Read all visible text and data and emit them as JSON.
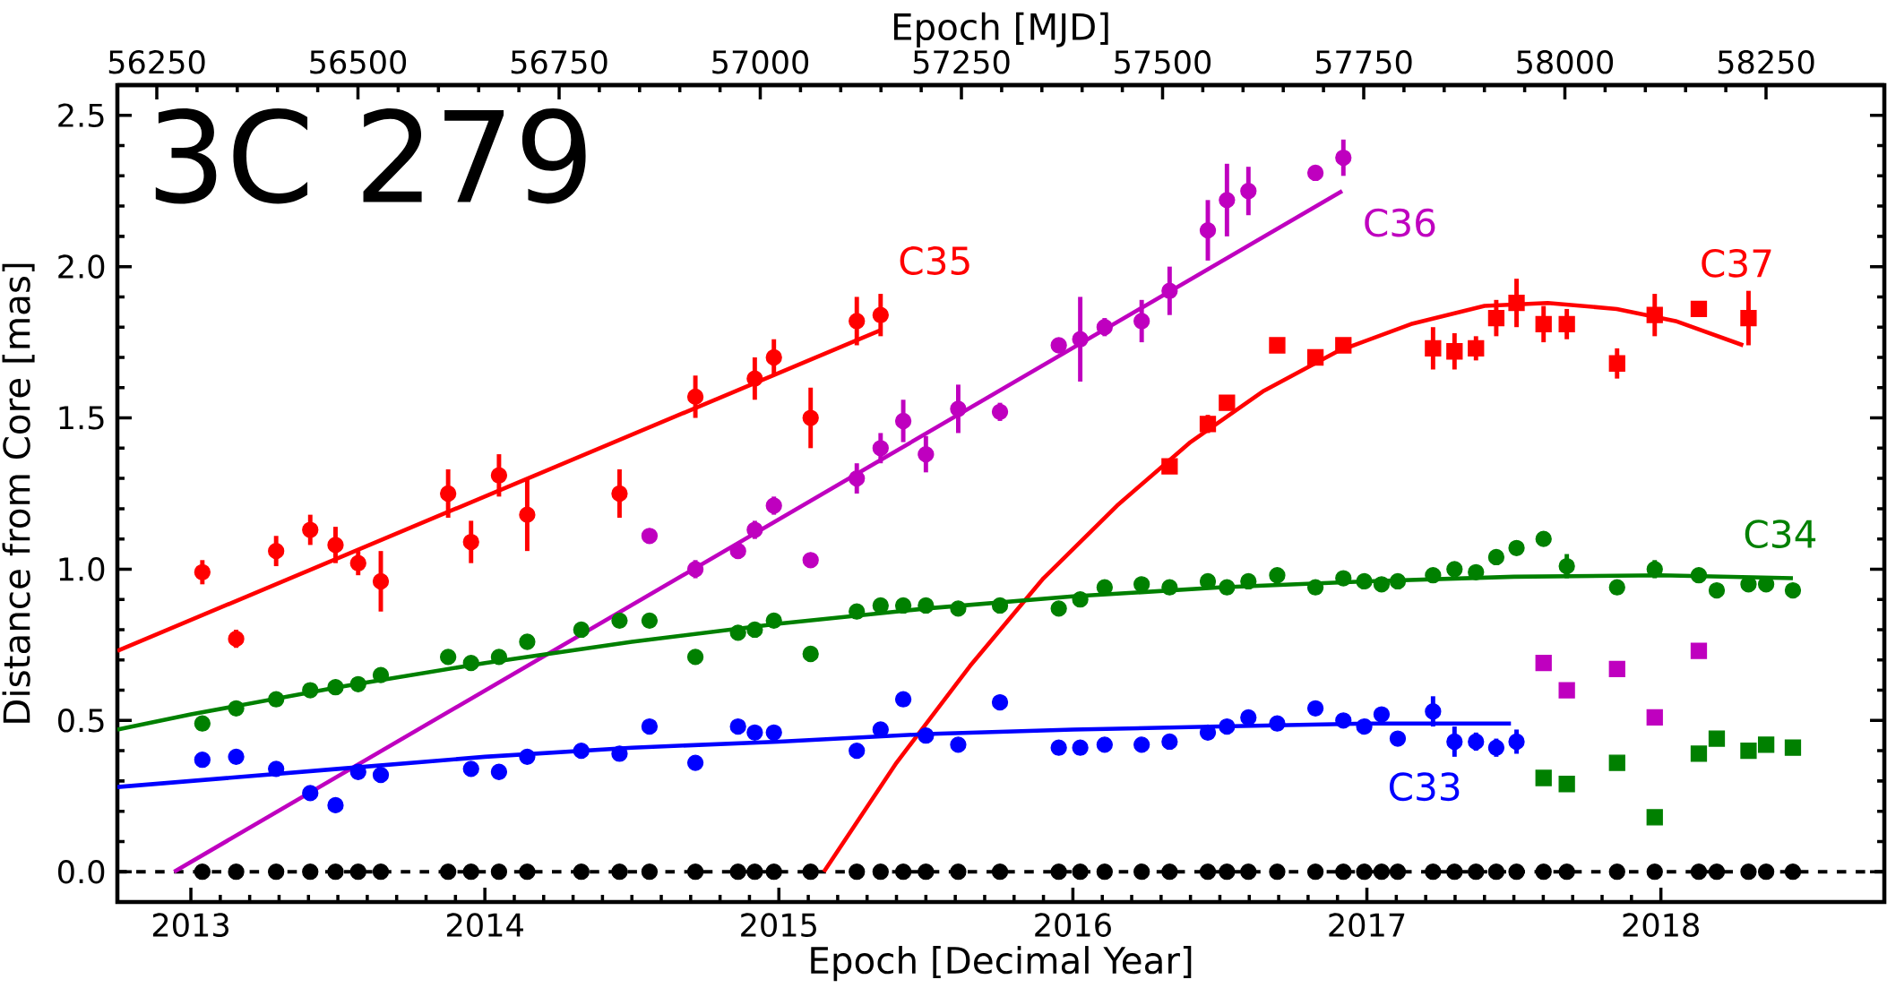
{
  "chart_data": {
    "type": "scatter",
    "xlabel": "Epoch [Decimal Year]",
    "x2label": "Epoch [MJD]",
    "ylabel": "Distance from Core [mas]",
    "xlim": [
      2012.75,
      2018.76
    ],
    "xticks": [
      2013,
      2014,
      2015,
      2016,
      2017,
      2018
    ],
    "x2lim": [
      56201,
      58397
    ],
    "x2ticks": [
      56250,
      56500,
      56750,
      57000,
      57250,
      57500,
      57750,
      58000,
      58250
    ],
    "ylim": [
      -0.1,
      2.6
    ],
    "yticks": [
      {
        "value": 0,
        "label": "0.0"
      },
      0.5,
      {
        "value": 1,
        "label": "1.0"
      },
      1.5,
      {
        "value": 2,
        "label": "2.0"
      },
      2.5
    ],
    "ref_lines": [
      {
        "axis": "y",
        "value": 0,
        "color": "#000000",
        "line_style": "dashed"
      }
    ],
    "annotations": [
      "3C 279"
    ],
    "series": [
      {
        "type": "line",
        "name": "C35",
        "color": "#ff0000",
        "marker": "none",
        "line_style": "solid",
        "x": [
          2012.75,
          2015.346
        ],
        "values": [
          0.73,
          1.79
        ]
      },
      {
        "type": "line",
        "name": "C36",
        "color": "#bf00bf",
        "marker": "none",
        "line_style": "solid",
        "x": [
          2012.943,
          2016.916
        ],
        "values": [
          0.0,
          2.25
        ]
      },
      {
        "type": "line",
        "name": "C37",
        "color": "#ff0000",
        "marker": "none",
        "line_style": "solid",
        "x": [
          2015.153,
          2015.4,
          2015.65,
          2015.9,
          2016.15,
          2016.4,
          2016.65,
          2016.9,
          2017.15,
          2017.4,
          2017.615,
          2017.85,
          2018.05,
          2018.28
        ],
        "values": [
          0.0,
          0.36,
          0.68,
          0.97,
          1.21,
          1.42,
          1.59,
          1.72,
          1.81,
          1.87,
          1.88,
          1.86,
          1.82,
          1.74
        ]
      },
      {
        "type": "line",
        "name": "C34",
        "color": "#008000",
        "marker": "none",
        "line_style": "solid",
        "x": [
          2012.75,
          2013,
          2013.5,
          2014,
          2014.5,
          2015,
          2015.5,
          2016,
          2016.5,
          2017,
          2017.5,
          2018,
          2018.449
        ],
        "values": [
          0.47,
          0.52,
          0.61,
          0.69,
          0.76,
          0.82,
          0.87,
          0.91,
          0.94,
          0.96,
          0.975,
          0.98,
          0.97
        ]
      },
      {
        "type": "line",
        "name": "C33",
        "color": "#0000ff",
        "marker": "none",
        "line_style": "solid",
        "x": [
          2012.75,
          2013,
          2013.5,
          2014,
          2014.5,
          2015,
          2015.5,
          2016,
          2016.5,
          2017,
          2017.49
        ],
        "values": [
          0.28,
          0.3,
          0.34,
          0.38,
          0.41,
          0.43,
          0.455,
          0.47,
          0.48,
          0.49,
          0.49
        ]
      },
      {
        "color": "#000000",
        "marker": "circle",
        "x": [
          2013.039,
          2013.154,
          2013.29,
          2013.406,
          2013.492,
          2013.569,
          2013.646,
          2013.875,
          2013.953,
          2014.048,
          2014.144,
          2014.328,
          2014.458,
          2014.56,
          2014.716,
          2014.861,
          2014.918,
          2014.983,
          2015.108,
          2015.265,
          2015.346,
          2015.423,
          2015.5,
          2015.61,
          2015.752,
          2015.952,
          2016.025,
          2016.108,
          2016.234,
          2016.329,
          2016.459,
          2016.524,
          2016.597,
          2016.695,
          2016.825,
          2016.92,
          2016.991,
          2017.05,
          2017.105,
          2017.225,
          2017.298,
          2017.371,
          2017.44,
          2017.509,
          2017.601,
          2017.68,
          2017.851,
          2017.979,
          2018.129,
          2018.19,
          2018.298,
          2018.358,
          2018.449
        ],
        "values": [
          0,
          0,
          0,
          0,
          0,
          0,
          0,
          0,
          0,
          0,
          0,
          0,
          0,
          0,
          0,
          0,
          0,
          0,
          0,
          0,
          0,
          0,
          0,
          0,
          0,
          0,
          0,
          0,
          0,
          0,
          0,
          0,
          0,
          0,
          0,
          0,
          0,
          0,
          0,
          0,
          0,
          0,
          0,
          0,
          0,
          0,
          0,
          0,
          0,
          0,
          0,
          0,
          0
        ]
      },
      {
        "color": "#008000",
        "marker": "circle",
        "x": [
          2013.039,
          2013.154,
          2013.29,
          2013.406,
          2013.492,
          2013.569,
          2013.646,
          2013.875,
          2013.953,
          2014.048,
          2014.144,
          2014.328,
          2014.458,
          2014.56,
          2014.716,
          2014.861,
          2014.918,
          2014.983,
          2015.108,
          2015.265,
          2015.346,
          2015.423,
          2015.5,
          2015.61,
          2015.752,
          2015.952,
          2016.025,
          2016.108,
          2016.234,
          2016.329,
          2016.459,
          2016.524,
          2016.597,
          2016.695,
          2016.825,
          2016.92,
          2016.991,
          2017.05,
          2017.105,
          2017.225,
          2017.298,
          2017.371,
          2017.44,
          2017.509,
          2017.601,
          2017.68,
          2017.851,
          2017.979,
          2018.129,
          2018.19,
          2018.298,
          2018.358,
          2018.449
        ],
        "values": [
          0.49,
          0.54,
          0.57,
          0.6,
          0.61,
          0.62,
          0.65,
          0.71,
          0.69,
          0.71,
          0.76,
          0.8,
          0.83,
          0.83,
          0.71,
          0.79,
          0.8,
          0.83,
          0.72,
          0.86,
          0.88,
          0.88,
          0.88,
          0.87,
          0.88,
          0.87,
          0.9,
          0.94,
          0.95,
          0.94,
          0.96,
          0.94,
          0.96,
          0.98,
          0.94,
          0.97,
          0.96,
          0.95,
          0.96,
          0.98,
          1.0,
          0.99,
          1.04,
          1.07,
          1.1,
          1.01,
          0.94,
          1.0,
          0.98,
          0.93,
          0.95,
          0.95,
          0.93
        ],
        "errors": [
          null,
          null,
          null,
          null,
          null,
          null,
          null,
          null,
          null,
          null,
          null,
          null,
          null,
          null,
          null,
          null,
          null,
          null,
          null,
          null,
          null,
          null,
          null,
          null,
          null,
          null,
          null,
          null,
          null,
          null,
          null,
          null,
          null,
          null,
          null,
          null,
          null,
          null,
          null,
          0.02,
          null,
          null,
          null,
          0.02,
          0.02,
          0.04,
          null,
          0.03,
          null,
          null,
          null,
          null,
          null
        ]
      },
      {
        "color": "#0000ff",
        "marker": "circle",
        "x": [
          2013.039,
          2013.154,
          2013.29,
          2013.406,
          2013.492,
          2013.569,
          2013.646,
          2013.953,
          2014.048,
          2014.144,
          2014.328,
          2014.458,
          2014.56,
          2014.716,
          2014.861,
          2014.918,
          2014.983,
          2015.265,
          2015.346,
          2015.423,
          2015.5,
          2015.61,
          2015.752,
          2015.952,
          2016.025,
          2016.108,
          2016.234,
          2016.329,
          2016.459,
          2016.524,
          2016.597,
          2016.695,
          2016.825,
          2016.92,
          2016.991,
          2017.05,
          2017.105,
          2017.225,
          2017.298,
          2017.371,
          2017.44,
          2017.509
        ],
        "values": [
          0.37,
          0.38,
          0.34,
          0.26,
          0.22,
          0.33,
          0.32,
          0.34,
          0.33,
          0.38,
          0.4,
          0.39,
          0.48,
          0.36,
          0.48,
          0.46,
          0.46,
          0.4,
          0.47,
          0.57,
          0.45,
          0.42,
          0.56,
          0.41,
          0.41,
          0.42,
          0.42,
          0.43,
          0.46,
          0.48,
          0.51,
          0.49,
          0.54,
          0.5,
          0.48,
          0.52,
          0.44,
          0.53,
          0.43,
          0.43,
          0.41,
          0.43
        ],
        "errors": [
          null,
          null,
          null,
          null,
          null,
          null,
          null,
          null,
          null,
          null,
          null,
          null,
          null,
          null,
          null,
          null,
          null,
          null,
          null,
          null,
          null,
          null,
          null,
          null,
          null,
          null,
          null,
          null,
          null,
          null,
          null,
          null,
          null,
          null,
          null,
          0.02,
          null,
          0.05,
          0.05,
          0.03,
          0.03,
          0.04
        ]
      },
      {
        "color": "#008000",
        "marker": "square",
        "x": [
          2017.601,
          2017.68,
          2017.851,
          2017.979,
          2018.129,
          2018.19,
          2018.298,
          2018.358,
          2018.449
        ],
        "values": [
          0.31,
          0.29,
          0.36,
          0.18,
          0.39,
          0.44,
          0.4,
          0.42,
          0.41
        ],
        "errors": [
          null,
          null,
          null,
          null,
          0.02,
          null,
          null,
          null,
          null
        ]
      },
      {
        "color": "#bf00bf",
        "marker": "square",
        "x": [
          2017.601,
          2017.68,
          2017.851,
          2017.979,
          2018.129
        ],
        "values": [
          0.69,
          0.6,
          0.67,
          0.51,
          0.73
        ]
      },
      {
        "color": "#ff0000",
        "marker": "circle",
        "x": [
          2013.039,
          2013.154,
          2013.29,
          2013.406,
          2013.492,
          2013.569,
          2013.646,
          2013.875,
          2013.953,
          2014.048,
          2014.144,
          2014.458,
          2014.716,
          2014.918,
          2014.983,
          2015.108,
          2015.265,
          2015.346
        ],
        "values": [
          0.99,
          0.77,
          1.06,
          1.13,
          1.08,
          1.02,
          0.96,
          1.25,
          1.09,
          1.31,
          1.18,
          1.25,
          1.57,
          1.63,
          1.7,
          1.5,
          1.82,
          1.84
        ],
        "errors": [
          0.04,
          0.03,
          0.05,
          0.05,
          0.06,
          0.04,
          0.1,
          0.08,
          0.07,
          0.07,
          0.12,
          0.08,
          0.07,
          0.07,
          0.06,
          0.1,
          0.08,
          0.07
        ]
      },
      {
        "color": "#bf00bf",
        "marker": "circle",
        "x": [
          2014.56,
          2014.716,
          2014.861,
          2014.918,
          2014.983,
          2015.108,
          2015.265,
          2015.346,
          2015.423,
          2015.5,
          2015.61,
          2015.752,
          2015.952,
          2016.025,
          2016.108,
          2016.234,
          2016.329,
          2016.459,
          2016.524,
          2016.597,
          2016.825,
          2016.92
        ],
        "values": [
          1.11,
          1.0,
          1.06,
          1.13,
          1.21,
          1.03,
          1.3,
          1.4,
          1.49,
          1.38,
          1.53,
          1.52,
          1.74,
          1.76,
          1.8,
          1.82,
          1.92,
          2.12,
          2.22,
          2.25,
          2.31,
          2.36
        ],
        "errors": [
          null,
          0.03,
          null,
          0.03,
          0.03,
          null,
          0.05,
          0.05,
          0.07,
          0.06,
          0.08,
          0.03,
          null,
          0.14,
          0.03,
          0.07,
          0.08,
          0.1,
          0.12,
          0.08,
          null,
          0.06
        ]
      },
      {
        "color": "#ff0000",
        "marker": "square",
        "x": [
          2016.329,
          2016.459,
          2016.524,
          2016.695,
          2016.825,
          2016.92,
          2017.225,
          2017.298,
          2017.371,
          2017.44,
          2017.509,
          2017.601,
          2017.68,
          2017.851,
          2017.979,
          2018.129,
          2018.298
        ],
        "values": [
          1.34,
          1.48,
          1.55,
          1.74,
          1.7,
          1.74,
          1.73,
          1.72,
          1.73,
          1.83,
          1.88,
          1.81,
          1.81,
          1.68,
          1.84,
          1.86,
          1.83
        ],
        "errors": [
          null,
          0.03,
          0.02,
          0.02,
          null,
          null,
          0.07,
          0.06,
          0.04,
          0.06,
          0.08,
          0.06,
          0.05,
          0.05,
          0.07,
          0.02,
          0.09
        ]
      }
    ]
  }
}
